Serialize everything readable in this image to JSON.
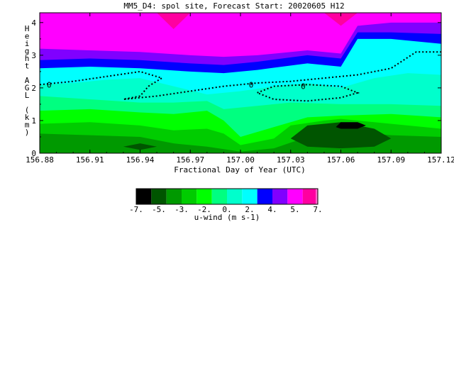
{
  "chart_data": {
    "type": "heatmap",
    "title": "MM5_D4: spol site,  Forecast Start: 20020605 H12",
    "xlabel": "Fractional Day of Year (UTC)",
    "ylabel": "Height AGL (km)",
    "x_ticks": [
      "156.88",
      "156.91",
      "156.94",
      "156.97",
      "157.00",
      "157.03",
      "157.06",
      "157.09",
      "157.12"
    ],
    "xlim": [
      156.88,
      157.12
    ],
    "y_ticks": [
      "0",
      "1",
      "2",
      "3",
      "4"
    ],
    "ylim": [
      0,
      4.3
    ],
    "colorbar": {
      "label": "u-wind (m s-1)",
      "tick_labels": [
        "-7.",
        "-5.",
        "-3.",
        "-2.",
        "0.",
        "2.",
        "4.",
        "5.",
        "7."
      ],
      "colors": [
        "#000000",
        "#005500",
        "#009900",
        "#00cc00",
        "#00ff00",
        "#00ff80",
        "#00ffcc",
        "#00ffff",
        "#0000ff",
        "#8000ff",
        "#ff00ff",
        "#ff00a0"
      ],
      "max_color": "#ff66cc"
    },
    "contour_label": "0",
    "levels": [
      {
        "name": "magenta",
        "color": "#ff00ff",
        "x": [
          156.88,
          157.12
        ],
        "y_top": [
          4.3,
          4.3
        ]
      },
      {
        "name": "violet",
        "color": "#8000ff",
        "x": [
          156.88,
          156.91,
          156.94,
          156.97,
          156.99,
          157.01,
          157.04,
          157.06,
          157.07,
          157.09,
          157.12
        ],
        "y_top": [
          3.2,
          3.15,
          3.1,
          3.0,
          2.95,
          3.0,
          3.15,
          3.05,
          3.9,
          4.0,
          4.0
        ]
      },
      {
        "name": "blue",
        "color": "#0000ff",
        "x": [
          156.88,
          156.91,
          156.94,
          156.97,
          156.99,
          157.01,
          157.04,
          157.06,
          157.07,
          157.09,
          157.12
        ],
        "y_top": [
          2.85,
          2.9,
          2.85,
          2.75,
          2.7,
          2.8,
          3.0,
          2.9,
          3.7,
          3.7,
          3.65
        ]
      },
      {
        "name": "cyan",
        "color": "#00ffff",
        "x": [
          156.88,
          156.91,
          156.94,
          156.97,
          156.99,
          157.01,
          157.04,
          157.06,
          157.07,
          157.09,
          157.12
        ],
        "y_top": [
          2.6,
          2.65,
          2.6,
          2.5,
          2.45,
          2.55,
          2.75,
          2.65,
          3.5,
          3.5,
          3.35
        ]
      },
      {
        "name": "aqua",
        "color": "#00ffcc",
        "x": [
          156.88,
          156.9,
          156.92,
          156.94,
          156.96,
          156.98,
          157.0,
          157.02,
          157.04,
          157.06,
          157.08,
          157.1,
          157.12
        ],
        "y_top": [
          2.1,
          2.15,
          2.25,
          2.3,
          2.05,
          1.8,
          1.9,
          2.05,
          2.15,
          2.0,
          2.3,
          2.45,
          2.4
        ]
      },
      {
        "name": "springgreen",
        "color": "#00ff80",
        "x": [
          156.88,
          156.91,
          156.94,
          156.96,
          156.98,
          156.99,
          157.01,
          157.03,
          157.06,
          157.09,
          157.12
        ],
        "y_top": [
          1.75,
          1.65,
          1.55,
          1.55,
          1.6,
          1.35,
          1.45,
          1.55,
          1.5,
          1.5,
          1.45
        ]
      },
      {
        "name": "green",
        "color": "#00ff00",
        "x": [
          156.88,
          156.91,
          156.94,
          156.96,
          156.98,
          156.99,
          157.0,
          157.02,
          157.04,
          157.06,
          157.09,
          157.12
        ],
        "y_top": [
          1.3,
          1.35,
          1.25,
          1.2,
          1.3,
          1.0,
          0.5,
          0.8,
          1.1,
          1.15,
          1.2,
          1.1
        ]
      },
      {
        "name": "medgreen",
        "color": "#00cc00",
        "x": [
          156.88,
          156.91,
          156.94,
          156.96,
          156.98,
          156.99,
          157.0,
          157.02,
          157.03,
          157.05,
          157.06,
          157.08,
          157.1,
          157.12
        ],
        "y_top": [
          0.9,
          0.95,
          0.85,
          0.7,
          0.75,
          0.6,
          0.25,
          0.45,
          0.85,
          1.0,
          1.05,
          0.95,
          0.85,
          0.75
        ]
      },
      {
        "name": "darkgreen",
        "color": "#009900",
        "x": [
          156.88,
          156.91,
          156.94,
          156.96,
          156.98,
          157.0,
          157.02,
          157.04,
          157.06,
          157.09,
          157.12
        ],
        "y_top": [
          0.6,
          0.55,
          0.5,
          0.3,
          0.2,
          0.05,
          0.15,
          0.5,
          0.7,
          0.55,
          0.5
        ]
      }
    ],
    "blobs": [
      {
        "name": "blob-darkest-green",
        "color": "#005500",
        "x": [
          157.03,
          157.04,
          157.06,
          157.08,
          157.09,
          157.08,
          157.06,
          157.04
        ],
        "y": [
          0.45,
          0.85,
          0.95,
          0.75,
          0.45,
          0.2,
          0.15,
          0.2
        ]
      },
      {
        "name": "blob-black",
        "color": "#000000",
        "x": [
          157.057,
          157.06,
          157.07,
          157.075,
          157.07,
          157.06
        ],
        "y": [
          0.8,
          0.95,
          0.95,
          0.85,
          0.75,
          0.75
        ]
      },
      {
        "name": "blob-lowleft",
        "color": "#005500",
        "x": [
          156.93,
          156.94,
          156.95,
          156.94
        ],
        "y": [
          0.2,
          0.3,
          0.2,
          0.1
        ]
      },
      {
        "name": "blob-top-hotpink-1",
        "color": "#ff00a0",
        "x": [
          156.95,
          156.96,
          156.97
        ],
        "y": [
          4.3,
          3.8,
          4.3
        ]
      },
      {
        "name": "blob-top-hotpink-2",
        "color": "#ff00a0",
        "x": [
          157.05,
          157.06,
          157.07
        ],
        "y": [
          4.3,
          3.9,
          4.3
        ]
      }
    ],
    "zero_contours": [
      {
        "name": "zero-contour-left",
        "x": [
          156.88,
          156.9,
          156.92,
          156.94,
          156.953,
          156.945,
          156.94,
          156.93,
          156.95,
          156.97,
          156.99,
          157.01,
          157.03,
          157.05,
          157.07,
          157.09,
          157.105,
          157.12
        ],
        "y": [
          2.1,
          2.2,
          2.35,
          2.5,
          2.3,
          2.05,
          1.75,
          1.65,
          1.75,
          1.9,
          2.05,
          2.15,
          2.2,
          2.3,
          2.4,
          2.6,
          3.1,
          3.1
        ]
      },
      {
        "name": "zero-contour-loop",
        "x": [
          157.01,
          157.02,
          157.04,
          157.06,
          157.07,
          157.06,
          157.04,
          157.02,
          157.01
        ],
        "y": [
          1.85,
          2.05,
          2.1,
          2.05,
          1.85,
          1.7,
          1.6,
          1.65,
          1.85
        ]
      }
    ]
  }
}
